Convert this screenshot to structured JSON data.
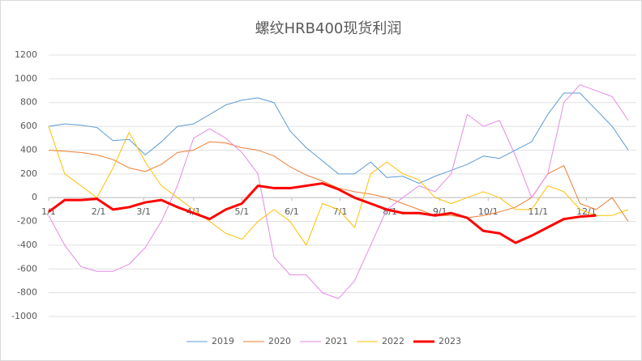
{
  "chart_data": {
    "type": "line",
    "title": "螺纹HRB400现货利润",
    "x": [
      1,
      11,
      21,
      31,
      41,
      51,
      61,
      71,
      81,
      91,
      101,
      111,
      121,
      131,
      141,
      151,
      161,
      171,
      181,
      191,
      201,
      211,
      221,
      231,
      241,
      251,
      261,
      271,
      281,
      291,
      301,
      311,
      321,
      331,
      341,
      351,
      361
    ],
    "xlim": [
      1,
      366
    ],
    "xticks": [
      {
        "value": 1,
        "label": "1/1"
      },
      {
        "value": 32,
        "label": "2/1"
      },
      {
        "value": 60,
        "label": "3/1"
      },
      {
        "value": 91,
        "label": "4/1"
      },
      {
        "value": 121,
        "label": "5/1"
      },
      {
        "value": 152,
        "label": "6/1"
      },
      {
        "value": 182,
        "label": "7/1"
      },
      {
        "value": 213,
        "label": "8/1"
      },
      {
        "value": 244,
        "label": "9/1"
      },
      {
        "value": 274,
        "label": "10/1"
      },
      {
        "value": 305,
        "label": "11/1"
      },
      {
        "value": 335,
        "label": "12/1"
      }
    ],
    "ylim": [
      -1000,
      1200
    ],
    "yticks": [
      -1000,
      -800,
      -600,
      -400,
      -200,
      0,
      200,
      400,
      600,
      800,
      1000,
      1200
    ],
    "grid": true,
    "legend": "bottom",
    "series": [
      {
        "name": "2019",
        "color": "#5b9bd5",
        "width": 1,
        "values": [
          600,
          620,
          610,
          590,
          480,
          490,
          360,
          470,
          600,
          620,
          700,
          780,
          820,
          840,
          800,
          560,
          420,
          310,
          200,
          200,
          300,
          170,
          180,
          120,
          180,
          230,
          280,
          350,
          330,
          400,
          470,
          700,
          880,
          880,
          740,
          600,
          400
        ]
      },
      {
        "name": "2020",
        "color": "#ed7d31",
        "width": 1,
        "values": [
          400,
          390,
          380,
          360,
          320,
          250,
          220,
          280,
          380,
          400,
          470,
          460,
          420,
          400,
          350,
          260,
          190,
          140,
          80,
          50,
          30,
          0,
          -50,
          -100,
          -150,
          -150,
          -170,
          -150,
          -120,
          -80,
          0,
          200,
          270,
          -50,
          -100,
          0,
          -200
        ]
      },
      {
        "name": "2021",
        "color": "#e68ae6",
        "width": 1,
        "values": [
          -150,
          -400,
          -580,
          -620,
          -620,
          -560,
          -420,
          -200,
          100,
          500,
          580,
          500,
          380,
          200,
          -500,
          -650,
          -650,
          -800,
          -850,
          -700,
          -400,
          -100,
          0,
          100,
          50,
          200,
          700,
          600,
          650,
          350,
          0,
          200,
          800,
          950,
          900,
          850,
          650
        ]
      },
      {
        "name": "2022",
        "color": "#ffc000",
        "width": 1,
        "values": [
          600,
          200,
          100,
          0,
          250,
          550,
          300,
          100,
          0,
          -100,
          -200,
          -300,
          -350,
          -200,
          -100,
          -200,
          -400,
          -50,
          -100,
          -250,
          200,
          300,
          200,
          150,
          0,
          -50,
          0,
          50,
          0,
          -100,
          -100,
          100,
          50,
          -100,
          -150,
          -150,
          -100
        ]
      },
      {
        "name": "2023",
        "color": "#ff0000",
        "width": 3,
        "values": [
          -120,
          -20,
          -20,
          -10,
          -100,
          -80,
          -40,
          -20,
          -80,
          -130,
          -180,
          -100,
          -50,
          100,
          80,
          80,
          100,
          120,
          70,
          0,
          -50,
          -100,
          -130,
          -130,
          -150,
          -130,
          -170,
          -280,
          -300,
          -380,
          -320,
          -250,
          -180,
          -160,
          -150,
          null,
          null
        ]
      }
    ]
  }
}
